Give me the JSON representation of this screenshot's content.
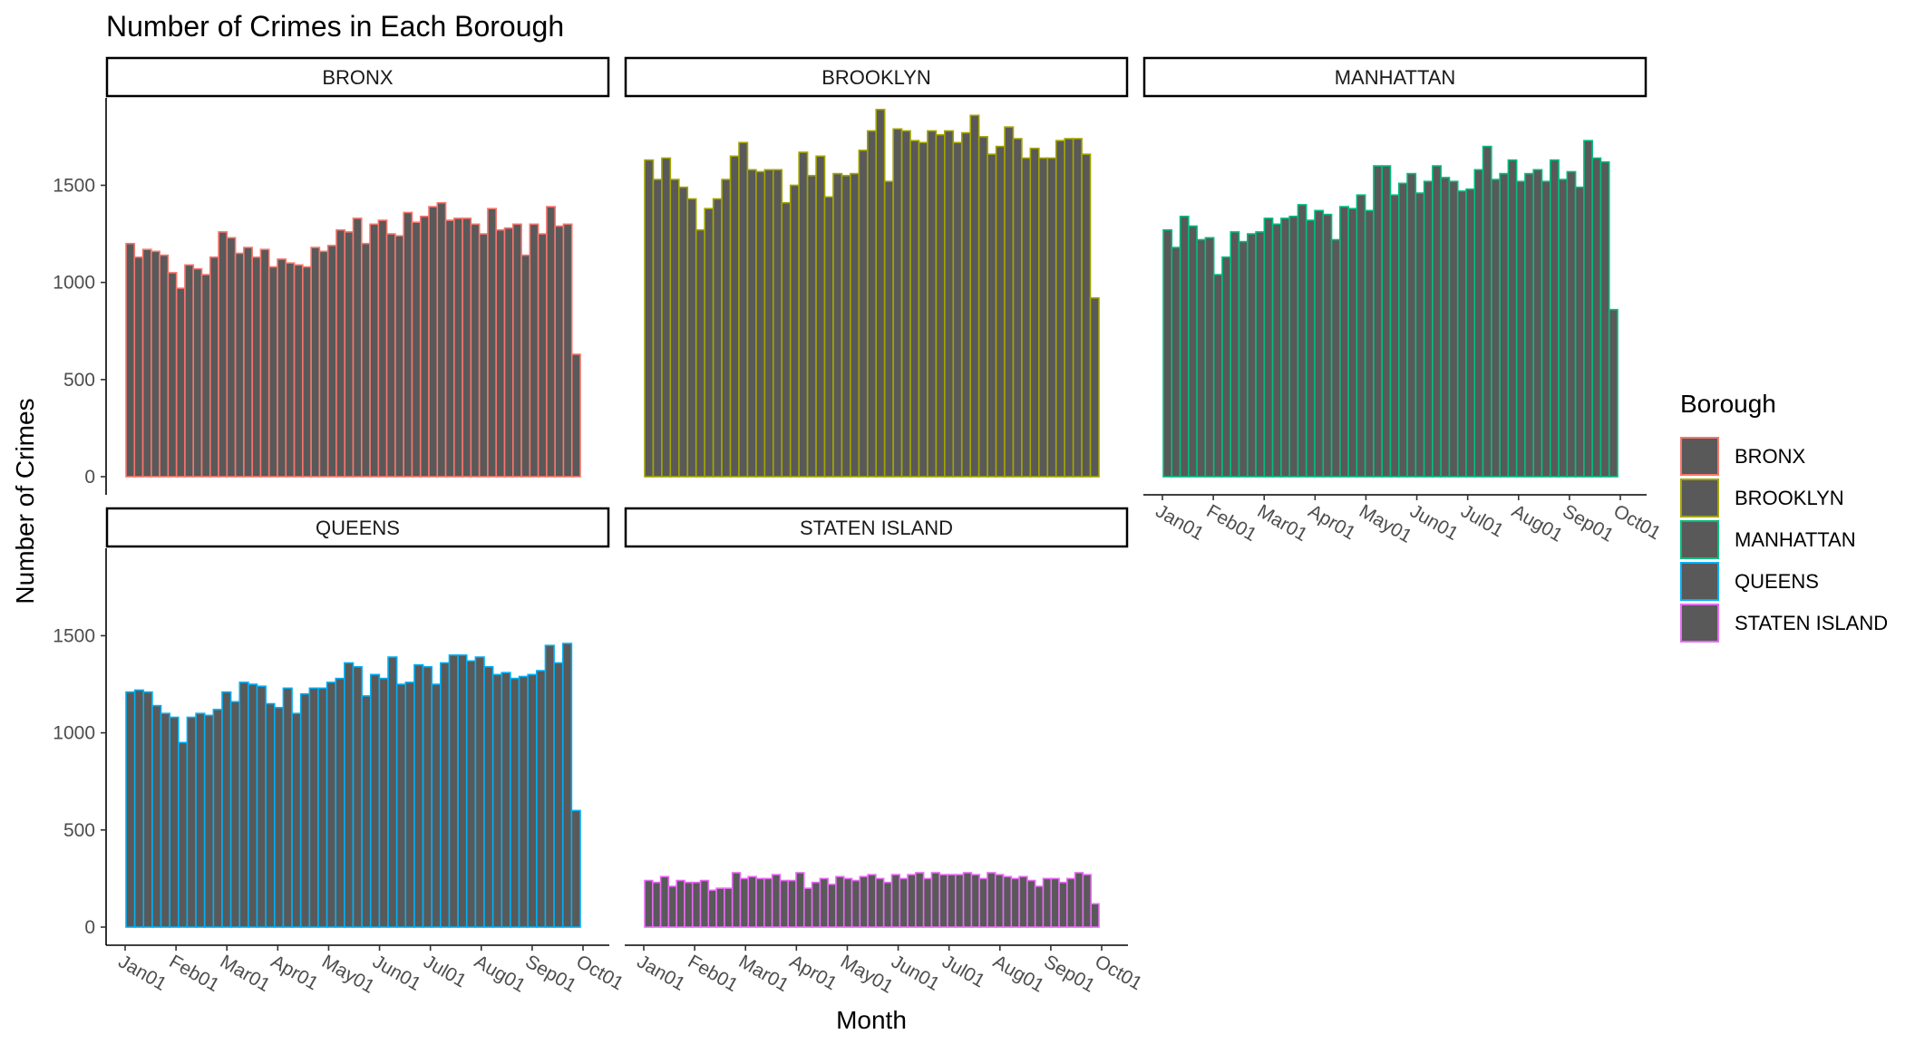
{
  "chart_data": {
    "type": "bar",
    "title": "Number of Crimes in Each Borough",
    "xlabel": "Month",
    "ylabel": "Number of Crimes",
    "x_ticks": [
      "Jan01",
      "Feb01",
      "Mar01",
      "Apr01",
      "May01",
      "Jun01",
      "Jul01",
      "Aug01",
      "Sep01",
      "Oct01"
    ],
    "y_ticks": [
      0,
      500,
      1000,
      1500
    ],
    "ylim": [
      0,
      1950
    ],
    "grid": false,
    "legend": {
      "title": "Borough",
      "placement": "right",
      "fill_color": "#595959"
    },
    "panels": [
      {
        "name": "BRONX",
        "color": "#F8766D",
        "values": [
          1200,
          1130,
          1170,
          1160,
          1140,
          1050,
          970,
          1090,
          1070,
          1040,
          1130,
          1260,
          1230,
          1150,
          1180,
          1130,
          1170,
          1080,
          1120,
          1100,
          1090,
          1080,
          1180,
          1160,
          1190,
          1270,
          1260,
          1330,
          1200,
          1300,
          1320,
          1250,
          1240,
          1360,
          1310,
          1340,
          1390,
          1410,
          1320,
          1330,
          1330,
          1300,
          1250,
          1380,
          1270,
          1280,
          1300,
          1140,
          1300,
          1250,
          1390,
          1290,
          1300,
          630
        ]
      },
      {
        "name": "BROOKLYN",
        "color": "#A3A500",
        "values": [
          1630,
          1530,
          1640,
          1530,
          1490,
          1430,
          1270,
          1380,
          1430,
          1530,
          1650,
          1720,
          1580,
          1570,
          1580,
          1580,
          1410,
          1500,
          1670,
          1550,
          1650,
          1440,
          1560,
          1550,
          1560,
          1680,
          1780,
          1890,
          1520,
          1790,
          1780,
          1730,
          1720,
          1780,
          1760,
          1780,
          1720,
          1770,
          1860,
          1750,
          1660,
          1700,
          1800,
          1740,
          1640,
          1690,
          1640,
          1640,
          1730,
          1740,
          1740,
          1660,
          920
        ]
      },
      {
        "name": "MANHATTAN",
        "color": "#00BF7D",
        "values": [
          1270,
          1180,
          1340,
          1290,
          1220,
          1230,
          1040,
          1130,
          1260,
          1210,
          1250,
          1260,
          1330,
          1300,
          1330,
          1340,
          1400,
          1320,
          1370,
          1350,
          1220,
          1390,
          1380,
          1450,
          1370,
          1600,
          1600,
          1450,
          1510,
          1560,
          1460,
          1520,
          1600,
          1540,
          1520,
          1470,
          1480,
          1580,
          1700,
          1530,
          1560,
          1630,
          1520,
          1560,
          1580,
          1520,
          1630,
          1530,
          1570,
          1490,
          1730,
          1640,
          1620,
          860
        ]
      },
      {
        "name": "QUEENS",
        "color": "#00B0F6",
        "values": [
          1210,
          1220,
          1210,
          1140,
          1100,
          1080,
          950,
          1080,
          1100,
          1090,
          1120,
          1210,
          1160,
          1260,
          1250,
          1240,
          1150,
          1130,
          1230,
          1100,
          1200,
          1230,
          1230,
          1260,
          1280,
          1360,
          1340,
          1190,
          1300,
          1280,
          1390,
          1250,
          1260,
          1350,
          1340,
          1250,
          1360,
          1400,
          1400,
          1370,
          1390,
          1340,
          1300,
          1310,
          1280,
          1290,
          1300,
          1320,
          1450,
          1360,
          1460,
          600
        ]
      },
      {
        "name": "STATEN ISLAND",
        "color": "#E76BF3",
        "values": [
          240,
          230,
          260,
          210,
          240,
          230,
          230,
          240,
          190,
          200,
          200,
          280,
          250,
          260,
          250,
          250,
          270,
          240,
          240,
          280,
          200,
          230,
          250,
          220,
          260,
          250,
          240,
          260,
          270,
          250,
          230,
          270,
          250,
          270,
          280,
          250,
          280,
          270,
          270,
          270,
          280,
          270,
          250,
          280,
          270,
          260,
          250,
          260,
          240,
          210,
          250,
          250,
          230,
          250,
          280,
          270,
          120
        ]
      }
    ]
  }
}
